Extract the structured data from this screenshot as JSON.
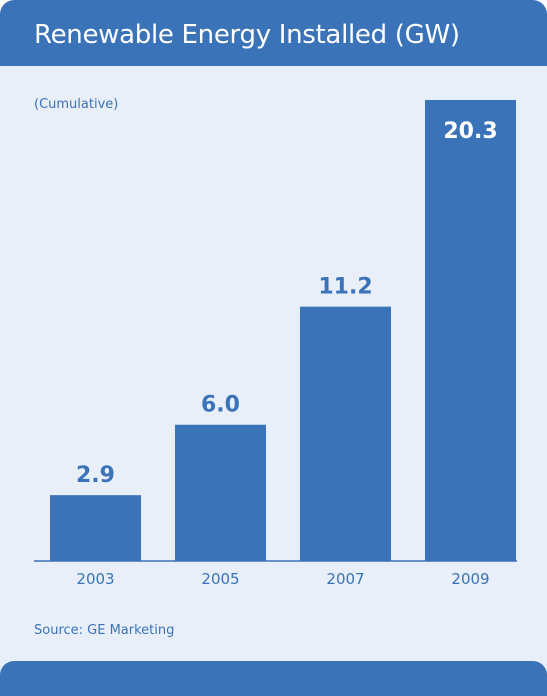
{
  "chart_data": {
    "type": "bar",
    "title": "Renewable Energy Installed (GW)",
    "subtitle": "(Cumulative)",
    "categories": [
      "2003",
      "2005",
      "2007",
      "2009"
    ],
    "values": [
      2.9,
      6.0,
      11.2,
      20.3
    ],
    "value_labels": [
      "2.9",
      "6.0",
      "11.2",
      "20.3"
    ],
    "ylim": [
      0,
      20.3
    ],
    "grid": false,
    "legend": "none",
    "source": "Source: GE Marketing"
  },
  "colors": {
    "accent": "#3b73b9",
    "background": "#e8eff8"
  }
}
